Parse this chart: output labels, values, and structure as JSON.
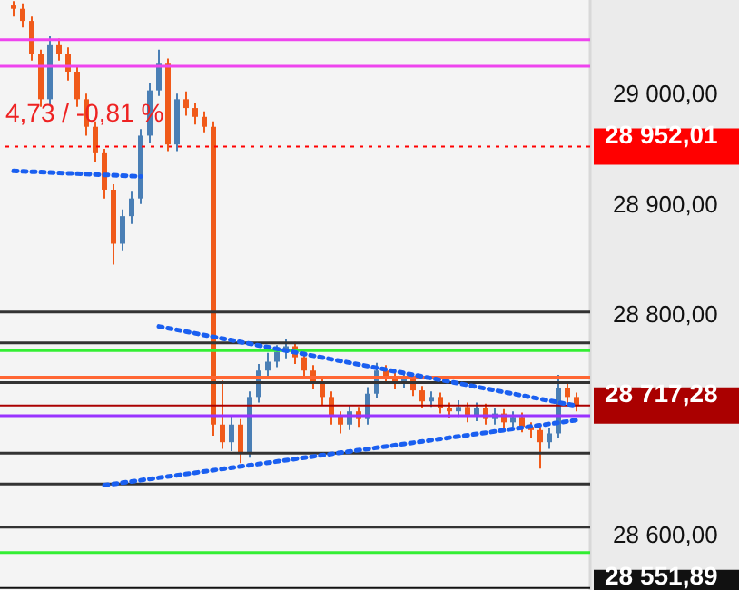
{
  "chart_data": {
    "type": "candlestick",
    "categories": [
      null,
      null,
      null,
      null,
      null,
      null,
      null,
      null,
      null,
      null,
      null,
      null,
      null,
      null,
      null,
      null,
      null,
      null,
      null,
      null,
      null,
      null,
      null,
      null,
      null,
      null,
      null,
      null,
      null,
      null,
      null,
      null,
      null,
      null,
      null,
      null,
      null,
      null,
      null,
      null,
      null,
      null,
      null,
      null,
      null,
      null,
      null,
      null,
      null,
      null,
      null,
      null,
      null,
      null,
      null,
      null,
      null,
      null,
      null,
      null,
      null,
      null,
      null
    ],
    "ohlc": [
      [
        29080,
        29084,
        29070,
        29077
      ],
      [
        29077,
        29082,
        29060,
        29066
      ],
      [
        29066,
        29070,
        29030,
        29036
      ],
      [
        29036,
        29040,
        28988,
        28995
      ],
      [
        28995,
        29052,
        28990,
        29044
      ],
      [
        29044,
        29050,
        29030,
        29036
      ],
      [
        29036,
        29042,
        29012,
        29020
      ],
      [
        29020,
        29025,
        28988,
        28995
      ],
      [
        28995,
        29000,
        28962,
        28970
      ],
      [
        28970,
        28975,
        28938,
        28946
      ],
      [
        28946,
        28950,
        28905,
        28913
      ],
      [
        28913,
        28918,
        28845,
        28864
      ],
      [
        28864,
        28895,
        28858,
        28889
      ],
      [
        28889,
        28912,
        28882,
        28905
      ],
      [
        28905,
        28968,
        28900,
        28962
      ],
      [
        28962,
        29010,
        28955,
        29003
      ],
      [
        29003,
        29040,
        28998,
        29028
      ],
      [
        29028,
        29032,
        28948,
        28954
      ],
      [
        28954,
        29000,
        28948,
        28995
      ],
      [
        28995,
        29002,
        28980,
        28987
      ],
      [
        28987,
        28992,
        28972,
        28979
      ],
      [
        28979,
        28984,
        28965,
        28970
      ],
      [
        28970,
        28975,
        28690,
        28700
      ],
      [
        28700,
        28740,
        28678,
        28684
      ],
      [
        28684,
        28708,
        28676,
        28700
      ],
      [
        28700,
        28705,
        28665,
        28675
      ],
      [
        28675,
        28730,
        28670,
        28725
      ],
      [
        28725,
        28755,
        28720,
        28749
      ],
      [
        28749,
        28765,
        28744,
        28757
      ],
      [
        28757,
        28772,
        28752,
        28766
      ],
      [
        28766,
        28778,
        28760,
        28771
      ],
      [
        28771,
        28775,
        28755,
        28761
      ],
      [
        28761,
        28766,
        28743,
        28749
      ],
      [
        28749,
        28754,
        28732,
        28738
      ],
      [
        28738,
        28742,
        28718,
        28725
      ],
      [
        28725,
        28730,
        28700,
        28708
      ],
      [
        28708,
        28712,
        28692,
        28700
      ],
      [
        28700,
        28718,
        28695,
        28712
      ],
      [
        28712,
        28716,
        28698,
        28705
      ],
      [
        28705,
        28734,
        28700,
        28728
      ],
      [
        28728,
        28756,
        28724,
        28749
      ],
      [
        28749,
        28754,
        28738,
        28744
      ],
      [
        28744,
        28748,
        28732,
        28738
      ],
      [
        28738,
        28746,
        28733,
        28741
      ],
      [
        28741,
        28745,
        28726,
        28731
      ],
      [
        28731,
        28735,
        28715,
        28721
      ],
      [
        28721,
        28730,
        28716,
        28725
      ],
      [
        28725,
        28729,
        28710,
        28715
      ],
      [
        28715,
        28720,
        28706,
        28712
      ],
      [
        28712,
        28722,
        28707,
        28716
      ],
      [
        28716,
        28720,
        28702,
        28708
      ],
      [
        28708,
        28720,
        28703,
        28715
      ],
      [
        28715,
        28719,
        28700,
        28705
      ],
      [
        28705,
        28715,
        28700,
        28710
      ],
      [
        28710,
        28714,
        28697,
        28702
      ],
      [
        28702,
        28712,
        28698,
        28707
      ],
      [
        28707,
        28711,
        28693,
        28698
      ],
      [
        28698,
        28702,
        28688,
        28695
      ],
      [
        28695,
        28698,
        28660,
        28684
      ],
      [
        28684,
        28697,
        28678,
        28692
      ],
      [
        28692,
        28745,
        28688,
        28733
      ],
      [
        28733,
        28738,
        28719,
        28725
      ],
      [
        28725,
        28729,
        28712,
        28717.28
      ]
    ],
    "colors": [
      "#f05a1a",
      "#f05a1a",
      "#f05a1a",
      "#f05a1a",
      "#4a7fb5",
      "#f05a1a",
      "#f05a1a",
      "#f05a1a",
      "#f05a1a",
      "#f05a1a",
      "#f05a1a",
      "#f05a1a",
      "#4a7fb5",
      "#4a7fb5",
      "#4a7fb5",
      "#4a7fb5",
      "#4a7fb5",
      "#f05a1a",
      "#4a7fb5",
      "#f05a1a",
      "#f05a1a",
      "#f05a1a",
      "#f05a1a",
      "#f05a1a",
      "#4a7fb5",
      "#f05a1a",
      "#4a7fb5",
      "#4a7fb5",
      "#4a7fb5",
      "#4a7fb5",
      "#4a7fb5",
      "#f05a1a",
      "#f05a1a",
      "#f05a1a",
      "#f05a1a",
      "#f05a1a",
      "#f05a1a",
      "#4a7fb5",
      "#f05a1a",
      "#4a7fb5",
      "#4a7fb5",
      "#f05a1a",
      "#f05a1a",
      "#4a7fb5",
      "#f05a1a",
      "#f05a1a",
      "#4a7fb5",
      "#f05a1a",
      "#f05a1a",
      "#4a7fb5",
      "#f05a1a",
      "#4a7fb5",
      "#f05a1a",
      "#4a7fb5",
      "#f05a1a",
      "#4a7fb5",
      "#f05a1a",
      "#f05a1a",
      "#f05a1a",
      "#4a7fb5",
      "#4a7fb5",
      "#f05a1a",
      "#f05a1a"
    ],
    "series": [
      {
        "type": "line",
        "values": [
          28930,
          null,
          null,
          null,
          null,
          null,
          null,
          null,
          null,
          null,
          null,
          null,
          null,
          null,
          28925,
          null,
          null,
          null,
          null,
          null,
          null,
          null,
          null,
          null,
          null,
          null,
          null,
          null,
          null,
          null,
          null,
          null,
          null,
          null,
          null,
          null,
          null,
          null,
          null,
          null,
          null,
          null,
          null,
          null,
          null,
          null,
          null,
          null,
          null,
          null,
          null,
          null,
          null,
          null,
          null,
          null,
          null,
          null,
          null,
          null,
          null,
          null,
          null
        ],
        "color": "#1a5ff0",
        "line_style": "dotted"
      },
      {
        "type": "line",
        "values": [
          null,
          null,
          null,
          null,
          null,
          null,
          null,
          null,
          null,
          null,
          null,
          null,
          null,
          null,
          null,
          null,
          28789,
          null,
          null,
          null,
          null,
          null,
          null,
          null,
          null,
          null,
          null,
          null,
          null,
          null,
          null,
          null,
          null,
          null,
          null,
          null,
          null,
          null,
          null,
          null,
          null,
          null,
          null,
          null,
          null,
          null,
          null,
          null,
          null,
          null,
          null,
          null,
          null,
          null,
          null,
          null,
          null,
          null,
          null,
          null,
          null,
          null,
          28717
        ],
        "color": "#1a5ff0",
        "line_style": "dotted"
      },
      {
        "type": "line",
        "values": [
          null,
          null,
          null,
          null,
          null,
          null,
          null,
          null,
          null,
          null,
          28645,
          null,
          null,
          null,
          null,
          null,
          null,
          null,
          null,
          null,
          null,
          null,
          null,
          null,
          null,
          null,
          null,
          null,
          null,
          null,
          null,
          null,
          null,
          null,
          null,
          null,
          null,
          null,
          null,
          null,
          null,
          null,
          null,
          null,
          null,
          null,
          null,
          null,
          null,
          null,
          null,
          null,
          null,
          null,
          null,
          null,
          null,
          null,
          null,
          null,
          null,
          null,
          28704
        ],
        "color": "#1a5ff0",
        "line_style": "dotted"
      }
    ],
    "ref_lines": [
      {
        "axis": "y",
        "value": 29049,
        "color": "#ee44ee"
      },
      {
        "axis": "y",
        "value": 29025,
        "color": "#ee44ee"
      },
      {
        "axis": "y",
        "value": 28952.01,
        "label": "28 952,01",
        "color": "#ff0000",
        "line_style": "dotted"
      },
      {
        "axis": "y",
        "value": 28802,
        "color": "#333333"
      },
      {
        "axis": "y",
        "value": 28774,
        "color": "#333333"
      },
      {
        "axis": "y",
        "value": 28767,
        "color": "#33ee33"
      },
      {
        "axis": "y",
        "value": 28743,
        "color": "#ff6633"
      },
      {
        "axis": "y",
        "value": 28738,
        "color": "#333333"
      },
      {
        "axis": "y",
        "value": 28708,
        "color": "#9933ff"
      },
      {
        "axis": "y",
        "value": 28674,
        "color": "#333333"
      },
      {
        "axis": "y",
        "value": 28646,
        "color": "#333333"
      },
      {
        "axis": "y",
        "value": 28607,
        "color": "#333333"
      },
      {
        "axis": "y",
        "value": 28584,
        "color": "#33ee33"
      },
      {
        "axis": "y",
        "value": 28717.28,
        "label": "28 717,28",
        "color": "#aa0000"
      },
      {
        "axis": "y",
        "value": 28551.89,
        "label": "28 551,89",
        "color": "#111111"
      }
    ],
    "annotations": [
      "4,73 / -0,81 %"
    ],
    "ylim": [
      28550,
      29085
    ],
    "yticks": [
      {
        "value": 28600,
        "label": "28 600,00"
      },
      {
        "value": 28800,
        "label": "28 800,00"
      },
      {
        "value": 28900,
        "label": "28 900,00"
      },
      {
        "value": 29000,
        "label": "29 000,00"
      }
    ],
    "tick_labels": "y",
    "grid": false
  }
}
